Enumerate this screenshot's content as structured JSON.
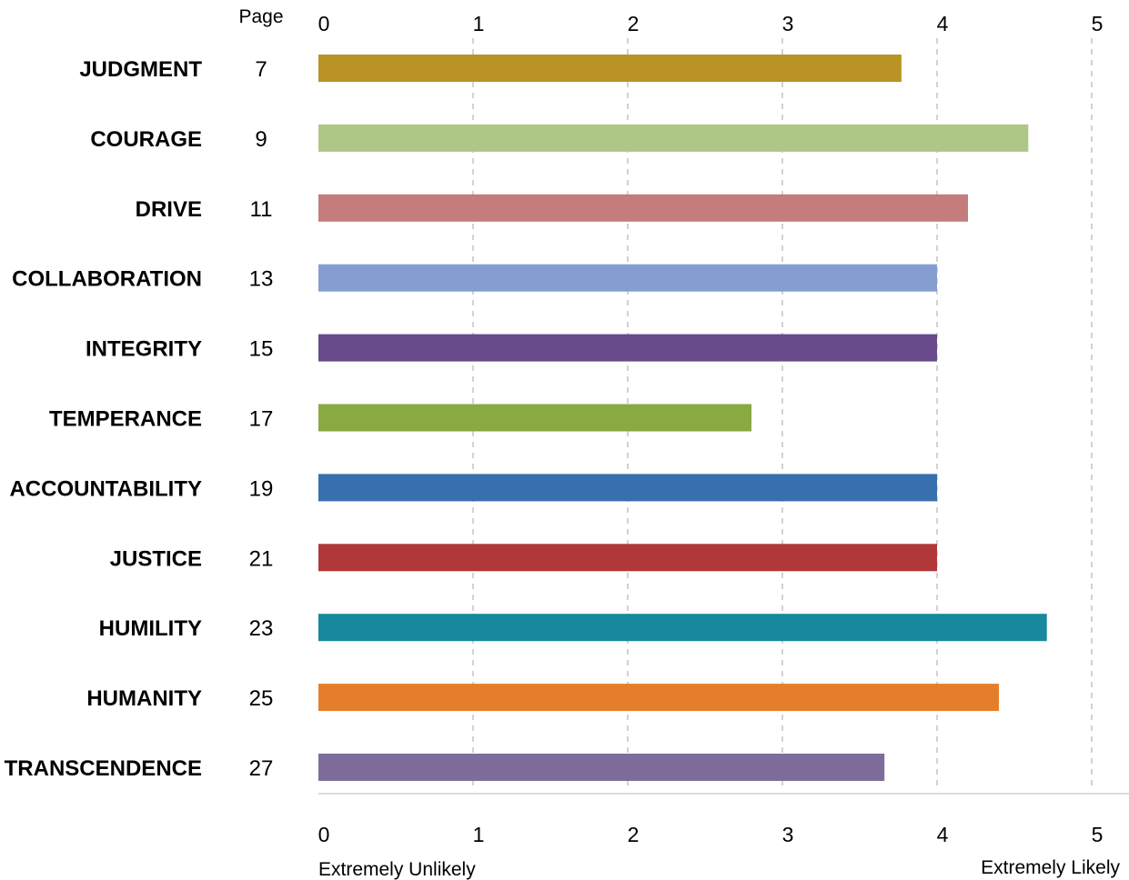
{
  "chart_data": {
    "type": "bar",
    "orientation": "horizontal",
    "page_column_header": "Page",
    "categories": [
      "JUDGMENT",
      "COURAGE",
      "DRIVE",
      "COLLABORATION",
      "INTEGRITY",
      "TEMPERANCE",
      "ACCOUNTABILITY",
      "JUSTICE",
      "HUMILITY",
      "HUMANITY",
      "TRANSCENDENCE"
    ],
    "pages": [
      "7",
      "9",
      "11",
      "13",
      "15",
      "17",
      "19",
      "21",
      "23",
      "25",
      "27"
    ],
    "values": [
      3.77,
      4.59,
      4.2,
      4.0,
      4.0,
      2.8,
      4.0,
      4.0,
      4.71,
      4.4,
      3.66
    ],
    "colors": [
      "#b99424",
      "#aec787",
      "#c47c7c",
      "#849ed1",
      "#674b8a",
      "#88aa40",
      "#386fad",
      "#b03838",
      "#16899e",
      "#e57e2b",
      "#7e6d9b"
    ],
    "xlim": [
      0,
      5
    ],
    "xticks": [
      "0",
      "1",
      "2",
      "3",
      "4",
      "5"
    ],
    "x_min_label": "Extremely Unlikely",
    "x_max_label": "Extremely Likely",
    "grid": "vertical dashed",
    "title": "",
    "xlabel": "",
    "ylabel": ""
  }
}
